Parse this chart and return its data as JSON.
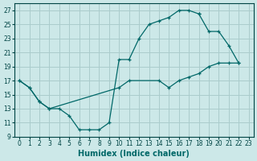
{
  "xlabel": "Humidex (Indice chaleur)",
  "bg_color": "#cce8e8",
  "grid_color": "#aacccc",
  "line_color": "#006868",
  "xlim": [
    -0.5,
    23.5
  ],
  "ylim": [
    9,
    28
  ],
  "xticks": [
    0,
    1,
    2,
    3,
    4,
    5,
    6,
    7,
    8,
    9,
    10,
    11,
    12,
    13,
    14,
    15,
    16,
    17,
    18,
    19,
    20,
    21,
    22,
    23
  ],
  "yticks": [
    9,
    11,
    13,
    15,
    17,
    19,
    21,
    23,
    25,
    27
  ],
  "curve1_x": [
    0,
    1,
    2,
    3,
    4,
    5,
    6,
    7,
    8,
    9,
    10,
    11,
    12,
    13,
    14,
    15,
    16,
    17,
    18
  ],
  "curve1_y": [
    17,
    16,
    14,
    13,
    13,
    12,
    10,
    10,
    10,
    11,
    20,
    20,
    23,
    25,
    25.5,
    26,
    27,
    27,
    26.5
  ],
  "curve2_x": [
    0,
    1,
    2,
    3,
    10,
    11,
    14,
    15,
    16,
    17,
    18,
    19,
    20,
    21,
    22
  ],
  "curve2_y": [
    17,
    16,
    14,
    13,
    16,
    17,
    17,
    16,
    17,
    17.5,
    18,
    19,
    19.5,
    19.5,
    19.5
  ],
  "curve3_x": [
    18,
    19,
    20,
    21,
    22
  ],
  "curve3_y": [
    26.5,
    24,
    24,
    22,
    19.5
  ],
  "tick_fontsize": 5.5,
  "axis_fontsize": 7
}
